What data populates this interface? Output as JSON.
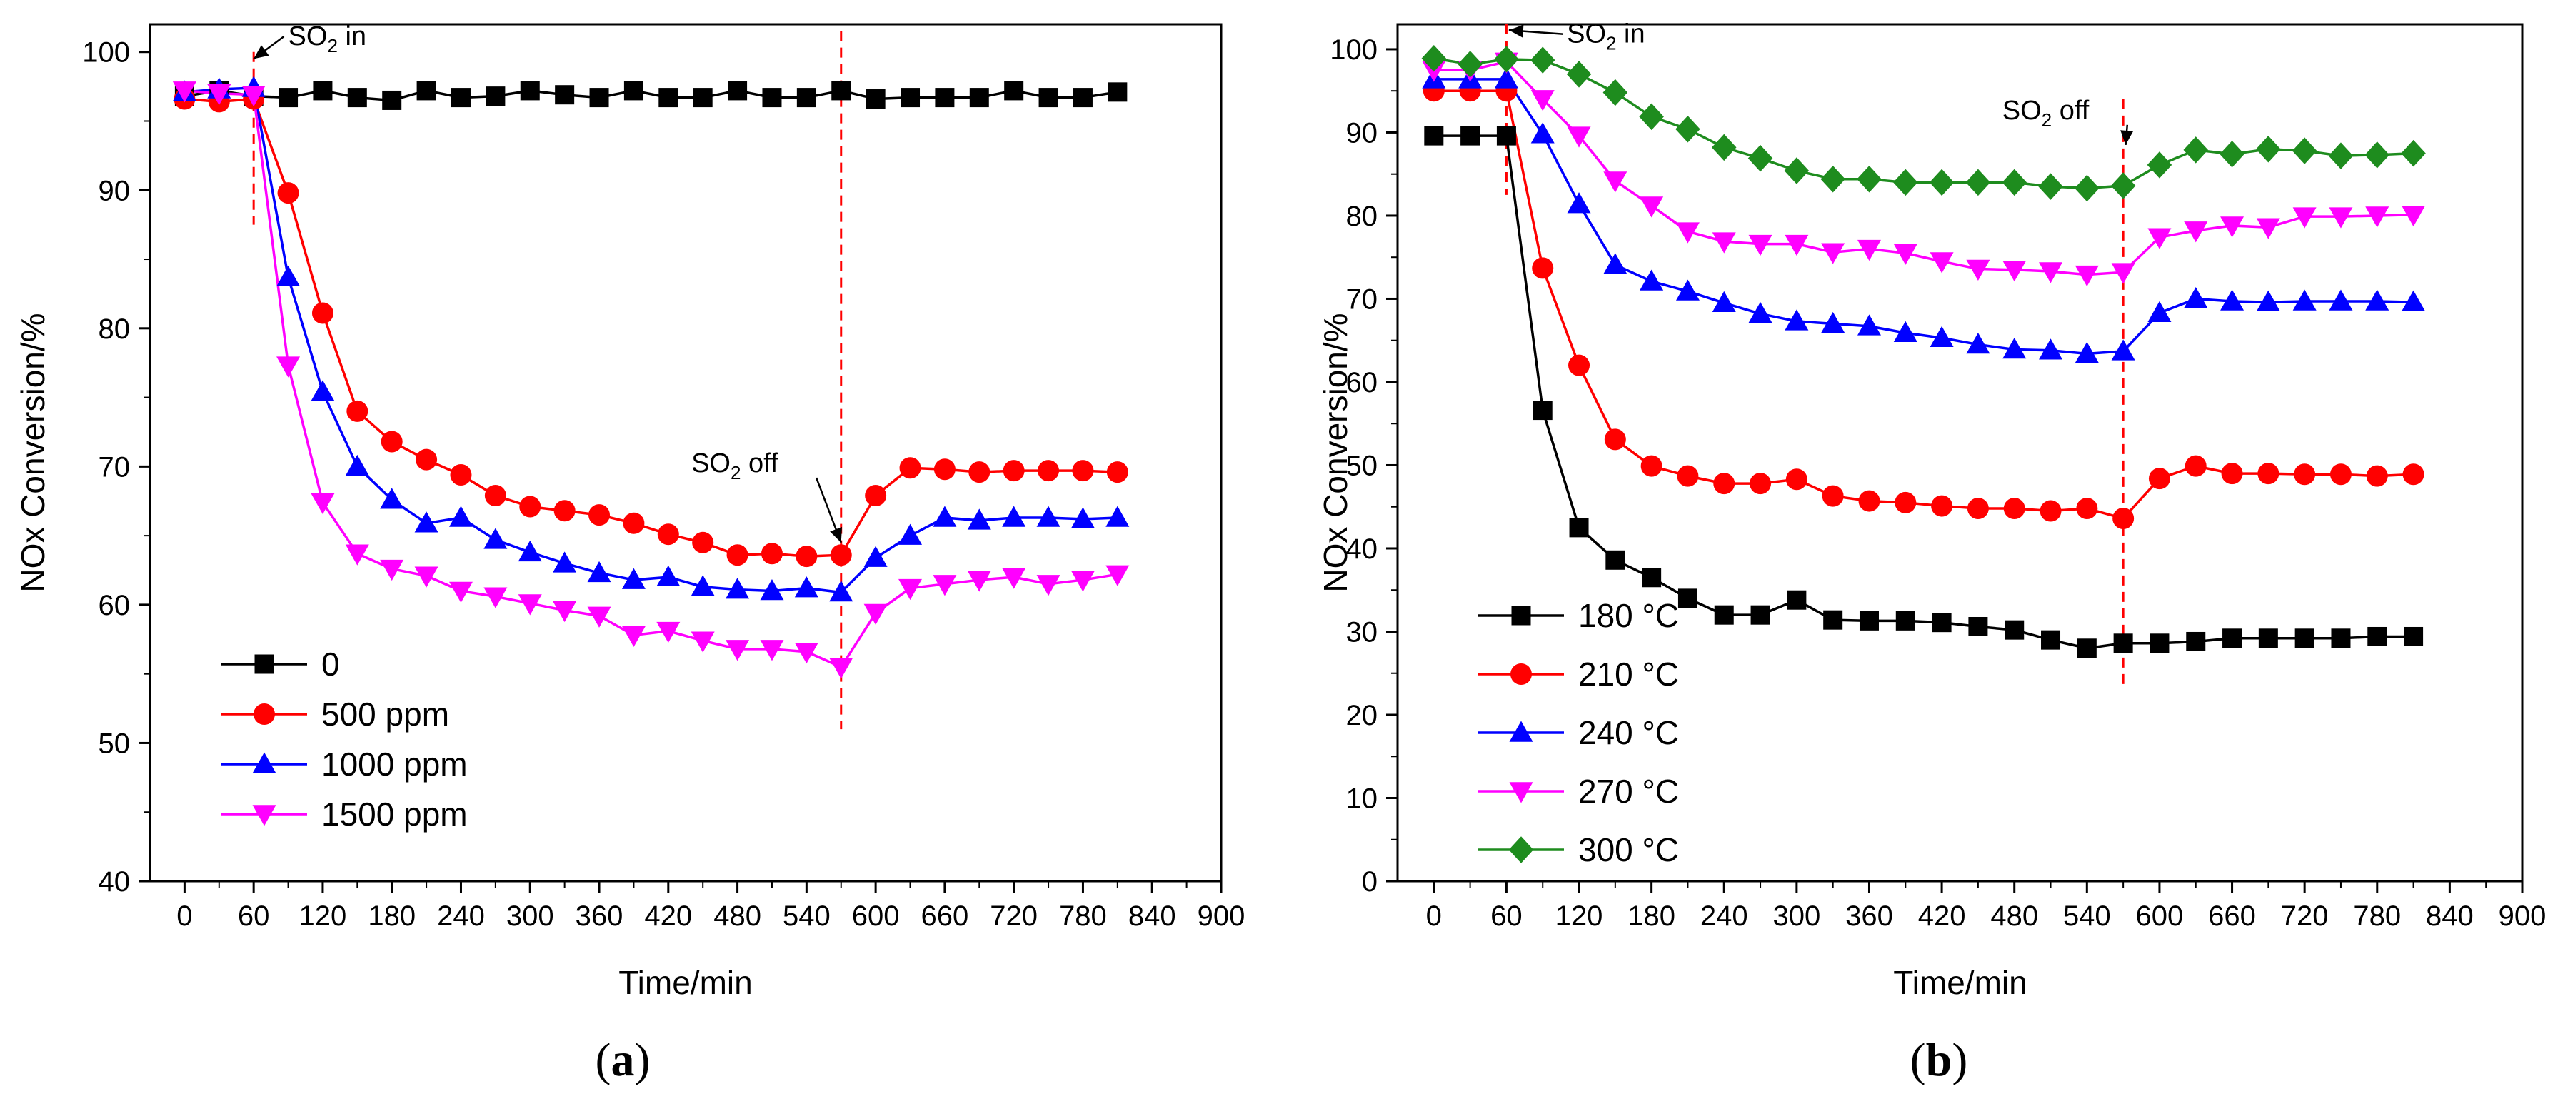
{
  "chart_data": [
    {
      "type": "line",
      "panel_label": "(a)",
      "panel_letter": "a",
      "title": "",
      "xlabel": "Time/min",
      "ylabel": "NOx Conversion/%",
      "xlim": [
        -30,
        900
      ],
      "ylim": [
        40,
        102
      ],
      "x_ticks": [
        0,
        60,
        120,
        180,
        240,
        300,
        360,
        420,
        480,
        540,
        600,
        660,
        720,
        780,
        840,
        900
      ],
      "y_ticks": [
        40,
        50,
        60,
        70,
        80,
        90,
        100
      ],
      "grid": false,
      "legend_position": "lower-left",
      "x": [
        0,
        30,
        60,
        90,
        120,
        150,
        180,
        210,
        240,
        270,
        300,
        330,
        360,
        390,
        420,
        450,
        480,
        510,
        540,
        570,
        600,
        630,
        660,
        690,
        720,
        750,
        780,
        810
      ],
      "series": [
        {
          "name": "0",
          "legend_label": "0",
          "color": "#000000",
          "marker": "square",
          "values": [
            96.8,
            97.2,
            96.8,
            96.7,
            97.2,
            96.7,
            96.5,
            97.2,
            96.7,
            96.8,
            97.2,
            96.9,
            96.7,
            97.2,
            96.7,
            96.7,
            97.2,
            96.7,
            96.7,
            97.2,
            96.6,
            96.7,
            96.7,
            96.7,
            97.2,
            96.7,
            96.7,
            97.1
          ]
        },
        {
          "name": "500 ppm",
          "legend_label": "500   ppm",
          "color": "#ff0000",
          "marker": "circle",
          "values": [
            96.6,
            96.4,
            96.6,
            89.8,
            81.1,
            74.0,
            71.8,
            70.5,
            69.4,
            67.9,
            67.1,
            66.8,
            66.5,
            65.9,
            65.1,
            64.5,
            63.6,
            63.7,
            63.5,
            63.6,
            67.9,
            69.9,
            69.8,
            69.6,
            69.7,
            69.7,
            69.7,
            69.6
          ]
        },
        {
          "name": "1000 ppm",
          "legend_label": "1000 ppm",
          "color": "#0000ff",
          "marker": "triangle-up",
          "values": [
            97.1,
            97.3,
            97.4,
            83.7,
            75.4,
            70.0,
            67.6,
            65.9,
            66.3,
            64.7,
            63.8,
            63.0,
            62.3,
            61.8,
            62.0,
            61.3,
            61.1,
            61.0,
            61.2,
            60.9,
            63.4,
            65.0,
            66.3,
            66.1,
            66.3,
            66.3,
            66.2,
            66.3
          ]
        },
        {
          "name": "1500 ppm",
          "legend_label": "1500 ppm",
          "color": "#ff00ff",
          "marker": "triangle-down",
          "values": [
            97.2,
            97.0,
            96.9,
            77.3,
            67.4,
            63.7,
            62.6,
            62.1,
            61.0,
            60.6,
            60.1,
            59.6,
            59.2,
            57.8,
            58.1,
            57.4,
            56.8,
            56.8,
            56.6,
            55.5,
            59.4,
            61.2,
            61.5,
            61.8,
            62.0,
            61.5,
            61.8,
            62.2
          ]
        }
      ],
      "annotations": [
        {
          "type": "vline",
          "x": 60,
          "y_range": [
            87.5,
            100
          ],
          "color": "#ff0000",
          "style": "dashed"
        },
        {
          "type": "vline",
          "x": 570,
          "y_range": [
            51,
            101.5
          ],
          "color": "#ff0000",
          "style": "dashed"
        },
        {
          "type": "label",
          "main": "SO",
          "sub": "2",
          "rest": " in",
          "anchor_x": 60,
          "anchor_y": 99.5,
          "text_x": 90,
          "text_y": 100.5
        },
        {
          "type": "label",
          "main": "SO",
          "sub": "2",
          "rest": " off",
          "anchor_x": 570,
          "anchor_y": 64.5,
          "text_x": 440,
          "text_y": 69.6
        }
      ]
    },
    {
      "type": "line",
      "panel_label": "(b)",
      "panel_letter": "b",
      "title": "",
      "xlabel": "Time/min",
      "ylabel": "NOx Conversion/%",
      "xlim": [
        -30,
        900
      ],
      "ylim": [
        0,
        103
      ],
      "x_ticks": [
        0,
        60,
        120,
        180,
        240,
        300,
        360,
        420,
        480,
        540,
        600,
        660,
        720,
        780,
        840,
        900
      ],
      "y_ticks": [
        0,
        10,
        20,
        30,
        40,
        50,
        60,
        70,
        80,
        90,
        100
      ],
      "grid": false,
      "legend_position": "lower-left",
      "x": [
        0,
        30,
        60,
        90,
        120,
        150,
        180,
        210,
        240,
        270,
        300,
        330,
        360,
        390,
        420,
        450,
        480,
        510,
        540,
        570,
        600,
        630,
        660,
        690,
        720,
        750,
        780,
        810
      ],
      "series": [
        {
          "name": "180 °C",
          "legend_label": "180 °C",
          "color": "#000000",
          "marker": "square",
          "values": [
            89.6,
            89.6,
            89.6,
            56.6,
            42.5,
            38.6,
            36.5,
            34.0,
            32.0,
            32.0,
            33.8,
            31.4,
            31.3,
            31.3,
            31.1,
            30.6,
            30.2,
            29.0,
            28.0,
            28.6,
            28.6,
            28.8,
            29.2,
            29.2,
            29.2,
            29.2,
            29.4,
            29.4
          ]
        },
        {
          "name": "210 °C",
          "legend_label": "210 °C",
          "color": "#ff0000",
          "marker": "circle",
          "values": [
            95.0,
            95.0,
            95.0,
            73.7,
            62.0,
            53.1,
            49.9,
            48.7,
            47.8,
            47.8,
            48.3,
            46.3,
            45.7,
            45.5,
            45.1,
            44.8,
            44.8,
            44.5,
            44.8,
            43.6,
            48.4,
            49.9,
            49.0,
            49.0,
            48.9,
            48.9,
            48.7,
            48.9
          ]
        },
        {
          "name": "240 °C",
          "legend_label": "240 °C",
          "color": "#0000ff",
          "marker": "triangle-up",
          "values": [
            96.4,
            96.4,
            96.4,
            89.8,
            81.4,
            74.1,
            72.1,
            70.9,
            69.5,
            68.2,
            67.3,
            67.0,
            66.7,
            65.9,
            65.3,
            64.5,
            63.9,
            63.8,
            63.4,
            63.7,
            68.3,
            70.0,
            69.7,
            69.6,
            69.7,
            69.7,
            69.7,
            69.6
          ]
        },
        {
          "name": "270 °C",
          "legend_label": "270 °C",
          "color": "#ff00ff",
          "marker": "triangle-down",
          "values": [
            97.5,
            97.5,
            98.5,
            94.0,
            89.6,
            84.2,
            81.2,
            78.1,
            76.9,
            76.6,
            76.6,
            75.6,
            76.0,
            75.5,
            74.5,
            73.6,
            73.5,
            73.3,
            72.9,
            73.2,
            77.4,
            78.2,
            78.8,
            78.6,
            79.9,
            79.9,
            80.0,
            80.1
          ]
        },
        {
          "name": "300 °C",
          "legend_label": "300 °C",
          "color": "#1e8c1e",
          "marker": "diamond",
          "values": [
            98.9,
            98.2,
            98.8,
            98.7,
            97.0,
            94.8,
            91.9,
            90.4,
            88.2,
            86.9,
            85.4,
            84.4,
            84.4,
            84.0,
            84.0,
            84.0,
            84.0,
            83.5,
            83.3,
            83.6,
            86.1,
            87.9,
            87.4,
            88.0,
            87.8,
            87.2,
            87.3,
            87.5
          ]
        }
      ],
      "annotations": [
        {
          "type": "vline",
          "x": 60,
          "y_range": [
            82.5,
            103
          ],
          "color": "#ff0000",
          "style": "dashed"
        },
        {
          "type": "vline",
          "x": 570,
          "y_range": [
            23,
            94
          ],
          "color": "#ff0000",
          "style": "dashed"
        },
        {
          "type": "label",
          "main": "SO",
          "sub": "2",
          "rest": " in",
          "anchor_x": 62,
          "anchor_y": 102.3,
          "text_x": 110,
          "text_y": 100.8
        },
        {
          "type": "label",
          "main": "SO",
          "sub": "2",
          "rest": " off",
          "anchor_x": 572,
          "anchor_y": 88.5,
          "text_x": 470,
          "text_y": 91.6
        }
      ]
    }
  ]
}
